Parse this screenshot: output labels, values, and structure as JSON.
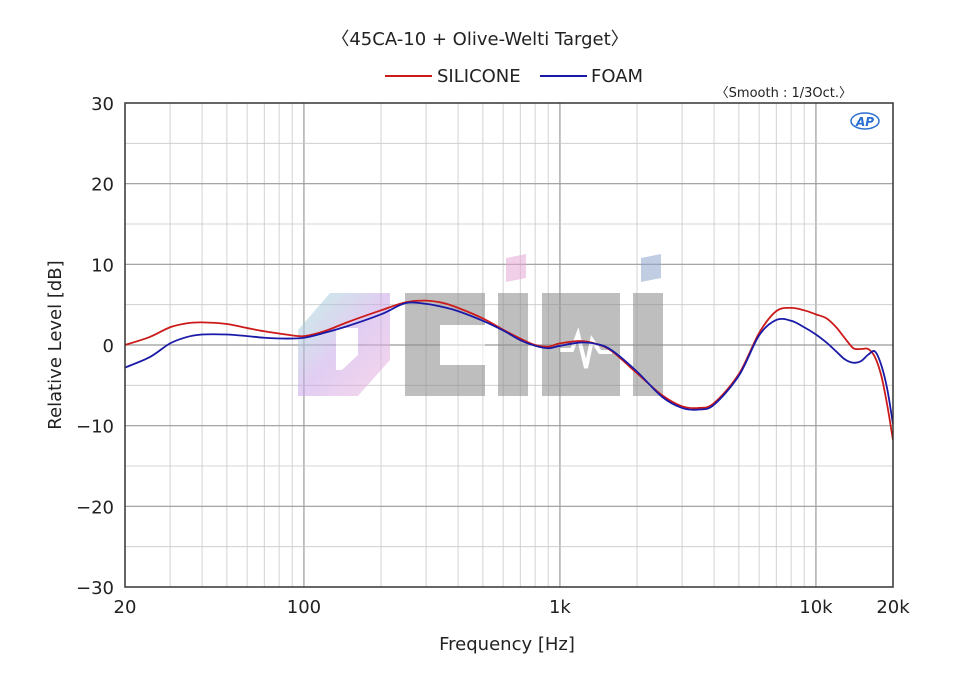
{
  "header": {
    "title": "〈45CA-10 + Olive-Welti Target〉",
    "smooth_note": "〈Smooth : 1/3Oct.〉",
    "badge": "AP"
  },
  "watermark": {
    "text": "OCIHI",
    "name": "watermark-logo"
  },
  "chart_data": {
    "type": "line",
    "title": "〈45CA-10 + Olive-Welti Target〉",
    "xlabel": "Frequency [Hz]",
    "ylabel": "Relative Level [dB]",
    "x_scale": "log",
    "xlim": [
      20,
      20000
    ],
    "ylim": [
      -30,
      30
    ],
    "grid": true,
    "legend_position": "top-center",
    "x_ticks": [
      {
        "value": 20,
        "label": "20"
      },
      {
        "value": 100,
        "label": "100"
      },
      {
        "value": 1000,
        "label": "1k"
      },
      {
        "value": 10000,
        "label": "10k"
      },
      {
        "value": 20000,
        "label": "20k"
      }
    ],
    "y_ticks": [
      {
        "value": 30,
        "label": "30"
      },
      {
        "value": 20,
        "label": "20"
      },
      {
        "value": 10,
        "label": "10"
      },
      {
        "value": 0,
        "label": "0"
      },
      {
        "value": -10,
        "label": "−10"
      },
      {
        "value": -20,
        "label": "−20"
      },
      {
        "value": -30,
        "label": "−30"
      }
    ],
    "series": [
      {
        "name": "SILICONE",
        "color": "#cc1a1a",
        "points": [
          [
            20,
            0.0
          ],
          [
            25,
            1.0
          ],
          [
            30,
            2.2
          ],
          [
            35,
            2.7
          ],
          [
            40,
            2.8
          ],
          [
            50,
            2.6
          ],
          [
            60,
            2.1
          ],
          [
            70,
            1.7
          ],
          [
            85,
            1.3
          ],
          [
            100,
            1.1
          ],
          [
            120,
            1.7
          ],
          [
            150,
            2.9
          ],
          [
            200,
            4.3
          ],
          [
            250,
            5.3
          ],
          [
            300,
            5.5
          ],
          [
            350,
            5.2
          ],
          [
            400,
            4.6
          ],
          [
            500,
            3.3
          ],
          [
            600,
            1.9
          ],
          [
            700,
            0.8
          ],
          [
            800,
            0.0
          ],
          [
            900,
            -0.2
          ],
          [
            1000,
            0.2
          ],
          [
            1200,
            0.5
          ],
          [
            1400,
            0.1
          ],
          [
            1600,
            -0.8
          ],
          [
            2000,
            -3.5
          ],
          [
            2500,
            -6.2
          ],
          [
            3000,
            -7.6
          ],
          [
            3500,
            -7.8
          ],
          [
            4000,
            -7.2
          ],
          [
            5000,
            -3.6
          ],
          [
            6000,
            1.5
          ],
          [
            7000,
            4.2
          ],
          [
            8000,
            4.6
          ],
          [
            9000,
            4.3
          ],
          [
            10000,
            3.8
          ],
          [
            11000,
            3.3
          ],
          [
            12000,
            2.2
          ],
          [
            13000,
            0.8
          ],
          [
            14000,
            -0.4
          ],
          [
            15000,
            -0.5
          ],
          [
            16000,
            -0.5
          ],
          [
            17000,
            -1.5
          ],
          [
            18000,
            -3.8
          ],
          [
            19000,
            -7.5
          ],
          [
            20000,
            -11.8
          ]
        ]
      },
      {
        "name": "FOAM",
        "color": "#1a1aa8",
        "points": [
          [
            20,
            -2.8
          ],
          [
            25,
            -1.5
          ],
          [
            30,
            0.2
          ],
          [
            35,
            1.0
          ],
          [
            40,
            1.3
          ],
          [
            50,
            1.3
          ],
          [
            60,
            1.1
          ],
          [
            70,
            0.9
          ],
          [
            85,
            0.8
          ],
          [
            100,
            0.9
          ],
          [
            120,
            1.5
          ],
          [
            150,
            2.4
          ],
          [
            200,
            3.8
          ],
          [
            250,
            5.2
          ],
          [
            300,
            5.1
          ],
          [
            350,
            4.7
          ],
          [
            400,
            4.2
          ],
          [
            500,
            3.0
          ],
          [
            600,
            1.8
          ],
          [
            700,
            0.6
          ],
          [
            800,
            -0.1
          ],
          [
            900,
            -0.4
          ],
          [
            1000,
            -0.1
          ],
          [
            1200,
            0.3
          ],
          [
            1400,
            0.1
          ],
          [
            1600,
            -0.7
          ],
          [
            2000,
            -3.3
          ],
          [
            2500,
            -6.4
          ],
          [
            3000,
            -7.8
          ],
          [
            3500,
            -8.0
          ],
          [
            4000,
            -7.4
          ],
          [
            5000,
            -3.8
          ],
          [
            6000,
            1.2
          ],
          [
            7000,
            3.1
          ],
          [
            8000,
            3.0
          ],
          [
            9000,
            2.2
          ],
          [
            10000,
            1.3
          ],
          [
            11000,
            0.3
          ],
          [
            12000,
            -0.8
          ],
          [
            13000,
            -1.8
          ],
          [
            14000,
            -2.2
          ],
          [
            15000,
            -2.0
          ],
          [
            16000,
            -1.2
          ],
          [
            17000,
            -0.8
          ],
          [
            18000,
            -2.5
          ],
          [
            19000,
            -5.5
          ],
          [
            20000,
            -9.8
          ]
        ]
      }
    ]
  }
}
